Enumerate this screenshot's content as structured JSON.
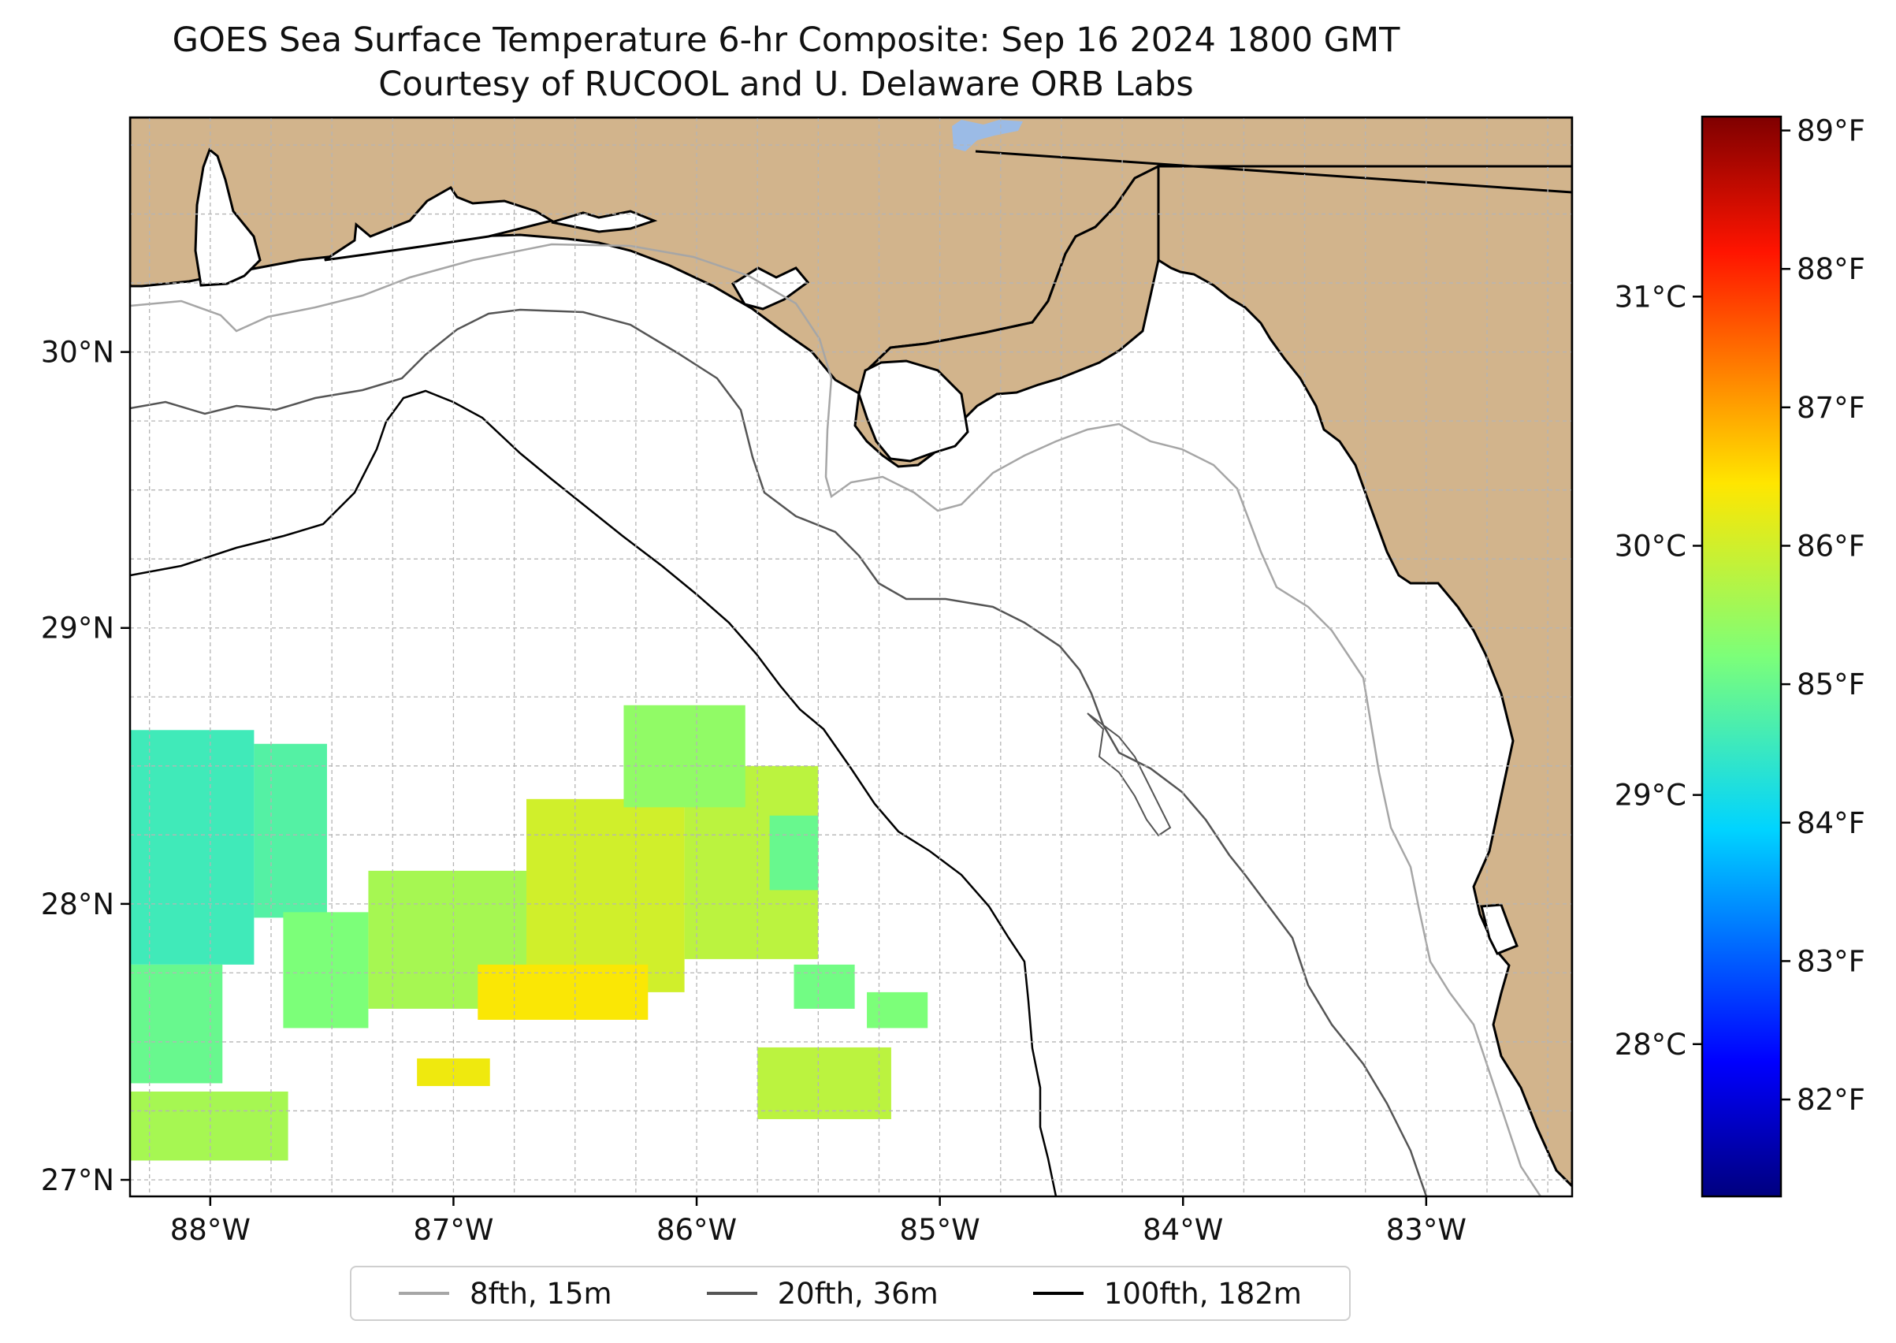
{
  "title": "GOES Sea Surface Temperature 6-hr Composite: Sep 16 2024 1800 GMT",
  "subtitle": "Courtesy of RUCOOL and U. Delaware ORB Labs",
  "map": {
    "lon_range": [
      -88.33,
      -82.4
    ],
    "lat_range": [
      26.94,
      30.85
    ],
    "gridlines": true,
    "lon_ticks": [
      {
        "value": -88,
        "label": "88°W"
      },
      {
        "value": -87,
        "label": "87°W"
      },
      {
        "value": -86,
        "label": "86°W"
      },
      {
        "value": -85,
        "label": "85°W"
      },
      {
        "value": -84,
        "label": "84°W"
      },
      {
        "value": -83,
        "label": "83°W"
      }
    ],
    "lat_ticks": [
      {
        "value": 27,
        "label": "27°N"
      },
      {
        "value": 28,
        "label": "28°N"
      },
      {
        "value": 29,
        "label": "29°N"
      },
      {
        "value": 30,
        "label": "30°N"
      }
    ],
    "land_color": "#d2b48c",
    "lake_color": "#9bbbe6"
  },
  "colorbar": {
    "colormap": "jet",
    "range_f": [
      81.3,
      89.1
    ],
    "fahrenheit_ticks": [
      {
        "value": 82,
        "label": "82°F"
      },
      {
        "value": 83,
        "label": "83°F"
      },
      {
        "value": 84,
        "label": "84°F"
      },
      {
        "value": 85,
        "label": "85°F"
      },
      {
        "value": 86,
        "label": "86°F"
      },
      {
        "value": 87,
        "label": "87°F"
      },
      {
        "value": 88,
        "label": "88°F"
      },
      {
        "value": 89,
        "label": "89°F"
      }
    ],
    "celsius_ticks": [
      {
        "value": 28,
        "label": "28°C"
      },
      {
        "value": 29,
        "label": "29°C"
      },
      {
        "value": 30,
        "label": "30°C"
      },
      {
        "value": 31,
        "label": "31°C"
      }
    ]
  },
  "legend": {
    "placement": "bottom-center",
    "items": [
      {
        "label": "8fth, 15m",
        "color": "#a6a6a6"
      },
      {
        "label": "20fth, 36m",
        "color": "#555555"
      },
      {
        "label": "100fth, 182m",
        "color": "#000000"
      }
    ]
  },
  "sst_patches": [
    {
      "lon": [
        -88.33,
        -87.82
      ],
      "lat": [
        27.78,
        28.63
      ],
      "temp_f": 84.6
    },
    {
      "lon": [
        -87.82,
        -87.52
      ],
      "lat": [
        27.95,
        28.58
      ],
      "temp_f": 84.8
    },
    {
      "lon": [
        -88.33,
        -87.95
      ],
      "lat": [
        27.35,
        27.78
      ],
      "temp_f": 85.0
    },
    {
      "lon": [
        -88.33,
        -87.68
      ],
      "lat": [
        27.07,
        27.32
      ],
      "temp_f": 85.6
    },
    {
      "lon": [
        -87.7,
        -87.35
      ],
      "lat": [
        27.55,
        27.97
      ],
      "temp_f": 85.2
    },
    {
      "lon": [
        -87.35,
        -86.7
      ],
      "lat": [
        27.62,
        28.12
      ],
      "temp_f": 85.6
    },
    {
      "lon": [
        -86.7,
        -86.05
      ],
      "lat": [
        27.68,
        28.38
      ],
      "temp_f": 86.0
    },
    {
      "lon": [
        -86.05,
        -85.5
      ],
      "lat": [
        27.8,
        28.5
      ],
      "temp_f": 85.8
    },
    {
      "lon": [
        -86.3,
        -85.8
      ],
      "lat": [
        28.35,
        28.72
      ],
      "temp_f": 85.4
    },
    {
      "lon": [
        -85.7,
        -85.5
      ],
      "lat": [
        28.05,
        28.32
      ],
      "temp_f": 85.0
    },
    {
      "lon": [
        -86.9,
        -86.2
      ],
      "lat": [
        27.58,
        27.78
      ],
      "temp_f": 86.4
    },
    {
      "lon": [
        -87.15,
        -86.85
      ],
      "lat": [
        27.34,
        27.44
      ],
      "temp_f": 86.3
    },
    {
      "lon": [
        -85.75,
        -85.2
      ],
      "lat": [
        27.22,
        27.48
      ],
      "temp_f": 85.8
    },
    {
      "lon": [
        -85.6,
        -85.35
      ],
      "lat": [
        27.62,
        27.78
      ],
      "temp_f": 85.1
    },
    {
      "lon": [
        -85.3,
        -85.05
      ],
      "lat": [
        27.55,
        27.68
      ],
      "temp_f": 85.2
    }
  ]
}
